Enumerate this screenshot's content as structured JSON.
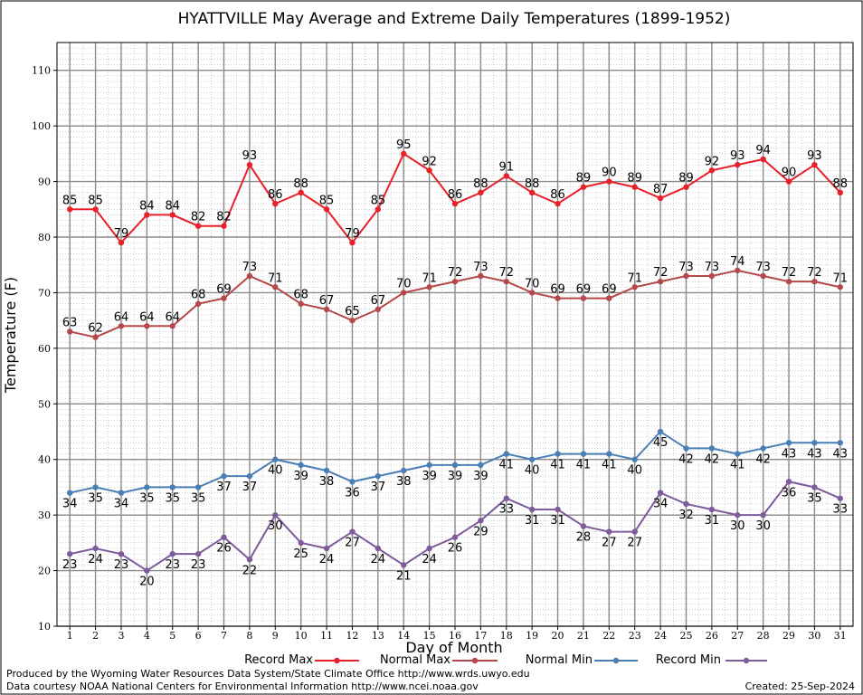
{
  "chart_data": {
    "type": "line",
    "title": "HYATTVILLE May Average and Extreme Daily Temperatures (1899-1952)",
    "xlabel": "Day of Month",
    "ylabel": "Temperature (F)",
    "ylim": [
      10,
      115
    ],
    "yticks": [
      10,
      20,
      30,
      40,
      50,
      60,
      70,
      80,
      90,
      100,
      110
    ],
    "x": [
      1,
      2,
      3,
      4,
      5,
      6,
      7,
      8,
      9,
      10,
      11,
      12,
      13,
      14,
      15,
      16,
      17,
      18,
      19,
      20,
      21,
      22,
      23,
      24,
      25,
      26,
      27,
      28,
      29,
      30,
      31
    ],
    "grid": true,
    "legend_position": "bottom",
    "series": [
      {
        "name": "Record Max",
        "color": "#e8202a",
        "label_position": "above",
        "values": [
          85,
          85,
          79,
          84,
          84,
          82,
          82,
          93,
          86,
          88,
          85,
          79,
          85,
          95,
          92,
          86,
          88,
          91,
          88,
          86,
          89,
          90,
          89,
          87,
          89,
          92,
          93,
          94,
          90,
          93,
          88
        ]
      },
      {
        "name": "Normal Max",
        "color": "#b5484a",
        "label_position": "above",
        "values": [
          63,
          62,
          64,
          64,
          64,
          68,
          69,
          73,
          71,
          68,
          67,
          65,
          67,
          70,
          71,
          72,
          73,
          72,
          70,
          69,
          69,
          69,
          71,
          72,
          73,
          73,
          74,
          73,
          72,
          72,
          71
        ]
      },
      {
        "name": "Normal Min",
        "color": "#4a7fb5",
        "label_position": "below",
        "values": [
          34,
          35,
          34,
          35,
          35,
          35,
          37,
          37,
          40,
          39,
          38,
          36,
          37,
          38,
          39,
          39,
          39,
          41,
          40,
          41,
          41,
          41,
          40,
          45,
          42,
          42,
          41,
          42,
          43,
          43,
          43
        ]
      },
      {
        "name": "Record Min",
        "color": "#7e5b9c",
        "label_position": "below",
        "values": [
          23,
          24,
          23,
          20,
          23,
          23,
          26,
          22,
          30,
          25,
          24,
          27,
          24,
          21,
          24,
          26,
          29,
          33,
          31,
          31,
          28,
          27,
          27,
          34,
          32,
          31,
          30,
          30,
          36,
          35,
          33
        ]
      }
    ]
  },
  "footer": {
    "produced_by": "Produced by the Wyoming Water Resources Data System/State Climate Office http://www.wrds.uwyo.edu",
    "data_courtesy": "Data courtesy NOAA National Centers for Environmental Information http://www.ncei.noaa.gov",
    "created": "Created:  25-Sep-2024"
  }
}
